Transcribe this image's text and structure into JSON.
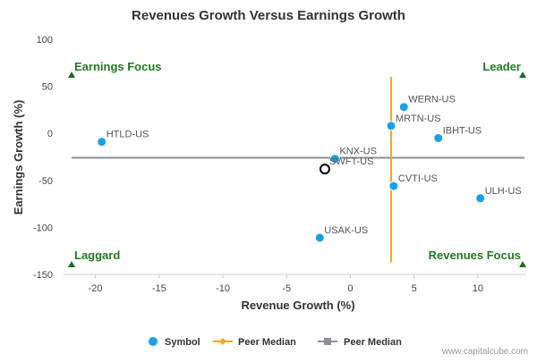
{
  "chart_data": {
    "type": "scatter",
    "title": "Revenues Growth Versus Earnings Growth",
    "xlabel": "Revenue Growth (%)",
    "ylabel": "Earnings Growth (%)",
    "xlim": [
      -22.5,
      13.8
    ],
    "ylim": [
      -150,
      100
    ],
    "x_ticks": [
      -20,
      -15,
      -10,
      -5,
      0,
      5,
      10
    ],
    "y_ticks": [
      100,
      50,
      0,
      -50,
      -100,
      -150
    ],
    "grid": false,
    "legend_position": "bottom-center",
    "points": [
      {
        "label": "HTLD-US",
        "x": -19.5,
        "y": -9
      },
      {
        "label": "WERN-US",
        "x": 4.2,
        "y": 28
      },
      {
        "label": "MRTN-US",
        "x": 3.2,
        "y": 8
      },
      {
        "label": "IBHT-US",
        "x": 6.9,
        "y": -5
      },
      {
        "label": "KNX-US",
        "x": -1.2,
        "y": -27
      },
      {
        "label": "CVTI-US",
        "x": 3.4,
        "y": -56
      },
      {
        "label": "ULH-US",
        "x": 10.2,
        "y": -69
      },
      {
        "label": "USAK-US",
        "x": -2.4,
        "y": -111
      }
    ],
    "highlight": {
      "label": "SWFT-US",
      "x": -2.0,
      "y": -38
    },
    "peer_median_revenue": 3.2,
    "peer_median_revenue_yrange": [
      -137,
      60
    ],
    "peer_median_earnings": -26,
    "quadrants": {
      "top_left": "Earnings Focus",
      "top_right": "Leader",
      "bottom_left": "Laggard",
      "bottom_right": "Revenues Focus"
    },
    "legend": [
      "Symbol",
      "Peer Median",
      "Peer Median"
    ],
    "colors": {
      "points": "#1aa0e6",
      "vertical_median": "#f5a623",
      "horizontal_median": "#8a8f99",
      "quadrant_text": "#1f7a1f",
      "axis_text": "#444444"
    }
  },
  "watermark": "www.capitalcube.com"
}
